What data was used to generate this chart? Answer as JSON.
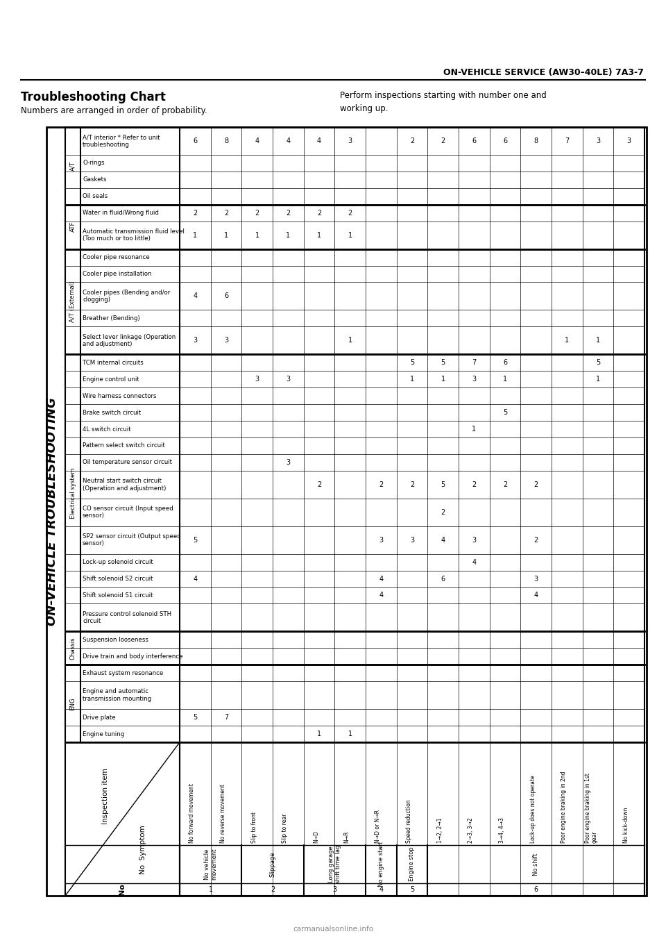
{
  "title_right": "ON-VEHICLE SERVICE (AW30–40LE) 7A3-7",
  "title_left": "Troubleshooting Chart",
  "subtitle_left": "Numbers are arranged in order of probability.",
  "subtitle_right": "Perform inspections starting with number one and\nworking up.",
  "vertical_label": "ON-VEHICLE TROUBLESHOOTING",
  "groups": [
    {
      "label": "A/T",
      "rows": [
        {
          "text": "A/T interior * Refer to unit\ntroubleshooting",
          "multi": true
        },
        {
          "text": "O-rings",
          "multi": false
        },
        {
          "text": "Gaskets",
          "multi": false
        },
        {
          "text": "Oil seals",
          "multi": false
        }
      ]
    },
    {
      "label": "ATF",
      "rows": [
        {
          "text": "Water in fluid/Wrong fluid",
          "multi": false
        },
        {
          "text": "Automatic transmission fluid level\n(Too much or too little)",
          "multi": true
        }
      ]
    },
    {
      "label": "A/T (External)",
      "rows": [
        {
          "text": "Cooler pipe resonance",
          "multi": false
        },
        {
          "text": "Cooler pipe installation",
          "multi": false
        },
        {
          "text": "Cooler pipes (Bending and/or\nclogging)",
          "multi": true
        },
        {
          "text": "Breather (Bending)",
          "multi": false
        },
        {
          "text": "Select lever linkage (Operation\nand adjustment)",
          "multi": true
        }
      ]
    },
    {
      "label": "Electrical system",
      "rows": [
        {
          "text": "TCM internal circuits",
          "multi": false
        },
        {
          "text": "Engine control unit",
          "multi": false
        },
        {
          "text": "Wire harness connectors",
          "multi": false
        },
        {
          "text": "Brake switch circuit",
          "multi": false
        },
        {
          "text": "4L switch circuit",
          "multi": false
        },
        {
          "text": "Pattern select switch circuit",
          "multi": false
        },
        {
          "text": "Oil temperature sensor circuit",
          "multi": false
        },
        {
          "text": "Neutral start switch circuit\n(Operation and adjustment)",
          "multi": true
        },
        {
          "text": "CO sensor circuit (Input speed\nsensor)",
          "multi": true
        },
        {
          "text": "SP2 sensor circuit (Output speed\nsensor)",
          "multi": true
        },
        {
          "text": "Lock-up solenoid circuit",
          "multi": false
        },
        {
          "text": "Shift solenoid S2 circuit",
          "multi": false
        },
        {
          "text": "Shift solenoid S1 circuit",
          "multi": false
        },
        {
          "text": "Pressure control solenoid STH\ncircuit",
          "multi": true
        }
      ]
    },
    {
      "label": "Chassis",
      "rows": [
        {
          "text": "Suspension looseness",
          "multi": false
        },
        {
          "text": "Drive train and body interference",
          "multi": false
        }
      ]
    },
    {
      "label": "ENG",
      "rows": [
        {
          "text": "Exhaust system resonance",
          "multi": false
        },
        {
          "text": "Engine and automatic\ntransmission mounting",
          "multi": true
        },
        {
          "text": "Drive plate",
          "multi": false
        },
        {
          "text": "Engine tuning",
          "multi": false
        }
      ]
    }
  ],
  "col_headers": [
    "No forward movement",
    "No reverse movement",
    "Slip to front",
    "Slip to rear",
    "N→D",
    "N→R",
    "N→D or N→R",
    "Speed reduction",
    "1→2, 2→1",
    "2→3, 3→2",
    "3→4, 4→3",
    "Lock-up does not operate",
    "Poor engine braking in 2nd",
    "Poor engine braking in 1st\ngear",
    "No kick-down"
  ],
  "symptom_groups": [
    {
      "label": "No vehicle\nmovement",
      "no": "1",
      "cols": [
        0,
        1
      ]
    },
    {
      "label": "Slippage",
      "no": "2",
      "cols": [
        2,
        3
      ]
    },
    {
      "label": "Long garage\nshift time lag",
      "no": "3",
      "cols": [
        4,
        5
      ]
    },
    {
      "label": "No engine start",
      "no": "4",
      "cols": [
        6
      ]
    },
    {
      "label": "Engine stop",
      "no": "5",
      "cols": [
        7
      ]
    },
    {
      "label": "No shift",
      "no": "6",
      "cols": [
        8,
        9,
        10,
        11,
        12,
        13,
        14
      ]
    }
  ],
  "cell_data": [
    [
      "6",
      "8",
      "4",
      "4",
      "4",
      "3",
      "",
      "2",
      "2",
      "6",
      "6",
      "8",
      "7",
      "3",
      "3"
    ],
    [
      "",
      "",
      "",
      "",
      "",
      "",
      "",
      "",
      "",
      "",
      "",
      "",
      "",
      "",
      ""
    ],
    [
      "",
      "",
      "",
      "",
      "",
      "",
      "",
      "",
      "",
      "",
      "",
      "",
      "",
      "",
      ""
    ],
    [
      "",
      "",
      "",
      "",
      "",
      "",
      "",
      "",
      "",
      "",
      "",
      "",
      "",
      "",
      ""
    ],
    [
      "2",
      "2",
      "2",
      "2",
      "2",
      "2",
      "",
      "",
      "",
      "",
      "",
      "",
      "",
      "",
      ""
    ],
    [
      "1",
      "1",
      "1",
      "1",
      "1",
      "1",
      "",
      "",
      "",
      "",
      "",
      "",
      "",
      "",
      ""
    ],
    [
      "",
      "",
      "",
      "",
      "",
      "",
      "",
      "",
      "",
      "",
      "",
      "",
      "",
      "",
      ""
    ],
    [
      "",
      "",
      "",
      "",
      "",
      "",
      "",
      "",
      "",
      "",
      "",
      "",
      "",
      "",
      ""
    ],
    [
      "4",
      "6",
      "",
      "",
      "",
      "",
      "",
      "",
      "",
      "",
      "",
      "",
      "",
      "",
      ""
    ],
    [
      "",
      "",
      "",
      "",
      "",
      "",
      "",
      "",
      "",
      "",
      "",
      "",
      "",
      "",
      ""
    ],
    [
      "3",
      "3",
      "",
      "",
      "",
      "1",
      "",
      "",
      "",
      "",
      "",
      "",
      "1",
      "1",
      ""
    ],
    [
      "",
      "",
      "",
      "",
      "",
      "",
      "",
      "5",
      "5",
      "7",
      "6",
      "",
      "",
      "5",
      ""
    ],
    [
      "",
      "",
      "3",
      "3",
      "",
      "",
      "",
      "1",
      "1",
      "3",
      "1",
      "",
      "",
      "1",
      ""
    ],
    [
      "",
      "",
      "",
      "",
      "",
      "",
      "",
      "",
      "",
      "",
      "",
      "",
      "",
      "",
      ""
    ],
    [
      "",
      "",
      "",
      "",
      "",
      "",
      "",
      "",
      "",
      "",
      "5",
      "",
      "",
      "",
      ""
    ],
    [
      "",
      "",
      "",
      "",
      "",
      "",
      "",
      "",
      "",
      "1",
      "",
      "",
      "",
      "",
      ""
    ],
    [
      "",
      "",
      "",
      "",
      "",
      "",
      "",
      "",
      "",
      "",
      "",
      "",
      "",
      "",
      ""
    ],
    [
      "",
      "",
      "",
      "3",
      "",
      "",
      "",
      "",
      "",
      "",
      "",
      "",
      "",
      "",
      ""
    ],
    [
      "",
      "",
      "",
      "",
      "2",
      "",
      "2",
      "2",
      "5",
      "2",
      "2",
      "2",
      "",
      "",
      ""
    ],
    [
      "",
      "",
      "",
      "",
      "",
      "",
      "",
      "",
      "2",
      "",
      "",
      "",
      "",
      "",
      ""
    ],
    [
      "5",
      "",
      "",
      "",
      "",
      "",
      "3",
      "3",
      "4",
      "3",
      "",
      "2",
      "",
      "",
      ""
    ],
    [
      "",
      "",
      "",
      "",
      "",
      "",
      "",
      "",
      "",
      "4",
      "",
      "",
      "",
      "",
      ""
    ],
    [
      "4",
      "",
      "",
      "",
      "",
      "",
      "4",
      "",
      "6",
      "",
      "",
      "3",
      "",
      "",
      ""
    ],
    [
      "",
      "",
      "",
      "",
      "",
      "",
      "4",
      "",
      "",
      "",
      "",
      "4",
      "",
      "",
      ""
    ],
    [
      "",
      "",
      "",
      "",
      "",
      "",
      "",
      "",
      "",
      "",
      "",
      "",
      "",
      "",
      ""
    ],
    [
      "",
      "",
      "",
      "",
      "",
      "",
      "",
      "",
      "",
      "",
      "",
      "",
      "",
      "",
      ""
    ],
    [
      "",
      "",
      "",
      "",
      "",
      "",
      "",
      "",
      "",
      "",
      "",
      "",
      "",
      "",
      ""
    ],
    [
      "",
      "",
      "",
      "",
      "",
      "",
      "",
      "",
      "",
      "",
      "",
      "",
      "",
      "",
      ""
    ],
    [
      "",
      "",
      "",
      "",
      "",
      "",
      "",
      "",
      "",
      "",
      "",
      "",
      "",
      "",
      ""
    ],
    [
      "5",
      "7",
      "",
      "",
      "",
      "",
      "",
      "",
      "",
      "",
      "",
      "",
      "",
      "",
      ""
    ],
    [
      "",
      "",
      "",
      "",
      "1",
      "1",
      "",
      "",
      "",
      "",
      "",
      "",
      "",
      "",
      ""
    ]
  ],
  "background_color": "#ffffff",
  "border_color": "#000000"
}
